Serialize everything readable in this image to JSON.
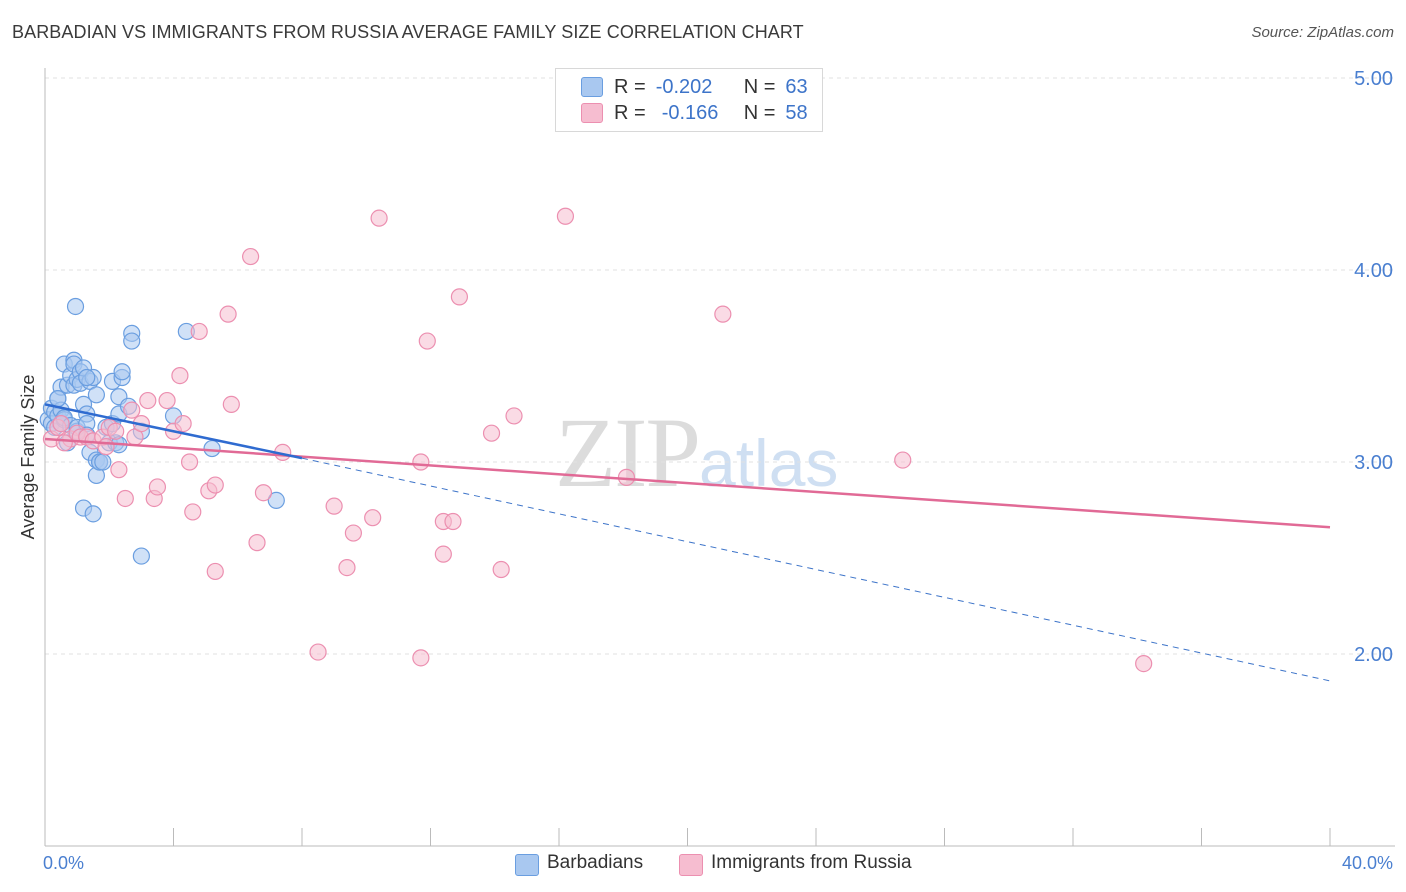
{
  "header": {
    "title": "BARBADIAN VS IMMIGRANTS FROM RUSSIA AVERAGE FAMILY SIZE CORRELATION CHART",
    "source": "Source: ZipAtlas.com"
  },
  "legend_top": {
    "rows": [
      {
        "r_label": "R =",
        "r_value": "-0.202",
        "n_label": "N =",
        "n_value": "63",
        "color": "#a9c8f0",
        "stroke": "#6a9ee0"
      },
      {
        "r_label": "R =",
        "r_value": "-0.166",
        "n_label": "N =",
        "n_value": "58",
        "color": "#f6bdd0",
        "stroke": "#ec8fb0"
      }
    ]
  },
  "legend_bottom": {
    "items": [
      {
        "label": "Barbadians",
        "color": "#a9c8f0",
        "stroke": "#6a9ee0"
      },
      {
        "label": "Immigrants from Russia",
        "color": "#f6bdd0",
        "stroke": "#ec8fb0"
      }
    ]
  },
  "watermark": {
    "zip": "ZIP",
    "atlas": "atlas"
  },
  "chart_data": {
    "type": "scatter",
    "title": "BARBADIAN VS IMMIGRANTS FROM RUSSIA AVERAGE FAMILY SIZE CORRELATION CHART",
    "xlabel": "",
    "ylabel": "Average Family Size",
    "xlim": [
      0,
      40
    ],
    "ylim": [
      1.1,
      5.3
    ],
    "x_tick_labels": [
      "0.0%",
      "40.0%"
    ],
    "y_ticks": [
      2.0,
      3.0,
      4.0,
      5.0
    ],
    "y_tick_labels": [
      "2.00",
      "3.00",
      "4.00",
      "5.00"
    ],
    "grid": true,
    "legend_position": "top-center",
    "series": [
      {
        "name": "Barbadians",
        "color": "#6a9ee0",
        "fill": "#a9c8f0",
        "trend": {
          "x": [
            0.0,
            8.0
          ],
          "y": [
            3.3,
            3.02
          ],
          "dashed_extension_to": [
            40.0,
            1.86
          ]
        },
        "points": [
          [
            0.1,
            3.22
          ],
          [
            0.2,
            3.28
          ],
          [
            0.2,
            3.2
          ],
          [
            0.3,
            3.26
          ],
          [
            0.3,
            3.18
          ],
          [
            0.4,
            3.33
          ],
          [
            0.4,
            3.24
          ],
          [
            0.5,
            3.39
          ],
          [
            0.5,
            3.27
          ],
          [
            0.5,
            3.2
          ],
          [
            0.6,
            3.51
          ],
          [
            0.6,
            3.22
          ],
          [
            0.6,
            3.23
          ],
          [
            0.7,
            3.1
          ],
          [
            0.7,
            3.4
          ],
          [
            0.8,
            3.45
          ],
          [
            0.8,
            3.19
          ],
          [
            0.9,
            3.53
          ],
          [
            0.9,
            3.4
          ],
          [
            0.9,
            3.51
          ],
          [
            1.0,
            3.43
          ],
          [
            1.0,
            3.16
          ],
          [
            1.0,
            3.18
          ],
          [
            1.1,
            3.47
          ],
          [
            1.1,
            3.41
          ],
          [
            1.2,
            3.49
          ],
          [
            1.2,
            3.3
          ],
          [
            1.2,
            2.76
          ],
          [
            1.3,
            3.25
          ],
          [
            1.3,
            3.2
          ],
          [
            1.3,
            3.14
          ],
          [
            1.4,
            3.05
          ],
          [
            1.4,
            3.42
          ],
          [
            1.5,
            3.44
          ],
          [
            1.5,
            2.73
          ],
          [
            1.6,
            3.35
          ],
          [
            1.6,
            2.93
          ],
          [
            1.6,
            3.01
          ],
          [
            1.7,
            3.0
          ],
          [
            1.7,
            3.0
          ],
          [
            1.8,
            3.0
          ],
          [
            1.9,
            3.18
          ],
          [
            2.0,
            3.1
          ],
          [
            2.1,
            3.42
          ],
          [
            2.1,
            3.2
          ],
          [
            2.2,
            3.1
          ],
          [
            2.3,
            3.25
          ],
          [
            2.3,
            3.34
          ],
          [
            2.4,
            3.44
          ],
          [
            2.4,
            3.47
          ],
          [
            2.3,
            3.09
          ],
          [
            2.6,
            3.29
          ],
          [
            2.7,
            3.67
          ],
          [
            2.7,
            3.63
          ],
          [
            3.0,
            3.16
          ],
          [
            3.0,
            2.51
          ],
          [
            0.95,
            3.81
          ],
          [
            0.4,
            3.33
          ],
          [
            1.3,
            3.44
          ],
          [
            4.0,
            3.24
          ],
          [
            4.4,
            3.68
          ],
          [
            5.2,
            3.07
          ],
          [
            7.2,
            2.8
          ]
        ]
      },
      {
        "name": "Immigrants from Russia",
        "color": "#ec8fb0",
        "fill": "#f6bdd0",
        "trend": {
          "x": [
            0.0,
            40.0
          ],
          "y": [
            3.12,
            2.66
          ]
        },
        "points": [
          [
            0.2,
            3.12
          ],
          [
            0.4,
            3.18
          ],
          [
            0.5,
            3.2
          ],
          [
            0.8,
            3.12
          ],
          [
            1.0,
            3.15
          ],
          [
            1.1,
            3.13
          ],
          [
            1.3,
            3.13
          ],
          [
            1.5,
            3.11
          ],
          [
            1.8,
            3.13
          ],
          [
            2.0,
            3.18
          ],
          [
            2.2,
            3.16
          ],
          [
            2.3,
            2.96
          ],
          [
            2.5,
            2.81
          ],
          [
            2.7,
            3.27
          ],
          [
            2.8,
            3.13
          ],
          [
            3.0,
            3.2
          ],
          [
            3.2,
            3.32
          ],
          [
            3.4,
            2.81
          ],
          [
            3.5,
            2.87
          ],
          [
            3.8,
            3.32
          ],
          [
            4.0,
            3.16
          ],
          [
            4.2,
            3.45
          ],
          [
            4.3,
            3.2
          ],
          [
            4.5,
            3.0
          ],
          [
            4.6,
            2.74
          ],
          [
            4.8,
            3.68
          ],
          [
            5.1,
            2.85
          ],
          [
            5.3,
            2.88
          ],
          [
            5.3,
            2.43
          ],
          [
            5.7,
            3.77
          ],
          [
            5.8,
            3.3
          ],
          [
            6.4,
            4.07
          ],
          [
            6.6,
            2.58
          ],
          [
            6.8,
            2.84
          ],
          [
            7.4,
            3.05
          ],
          [
            8.5,
            2.01
          ],
          [
            9.0,
            2.77
          ],
          [
            9.4,
            2.45
          ],
          [
            9.6,
            2.63
          ],
          [
            10.2,
            2.71
          ],
          [
            10.4,
            4.27
          ],
          [
            11.7,
            3.0
          ],
          [
            11.7,
            1.98
          ],
          [
            11.9,
            3.63
          ],
          [
            12.4,
            2.69
          ],
          [
            12.4,
            2.52
          ],
          [
            12.7,
            2.69
          ],
          [
            12.9,
            3.86
          ],
          [
            13.9,
            3.15
          ],
          [
            14.2,
            2.44
          ],
          [
            14.6,
            3.24
          ],
          [
            16.2,
            4.28
          ],
          [
            18.1,
            2.92
          ],
          [
            21.1,
            3.77
          ],
          [
            26.7,
            3.01
          ],
          [
            34.2,
            1.95
          ],
          [
            1.9,
            3.08
          ],
          [
            0.6,
            3.1
          ]
        ]
      }
    ]
  }
}
